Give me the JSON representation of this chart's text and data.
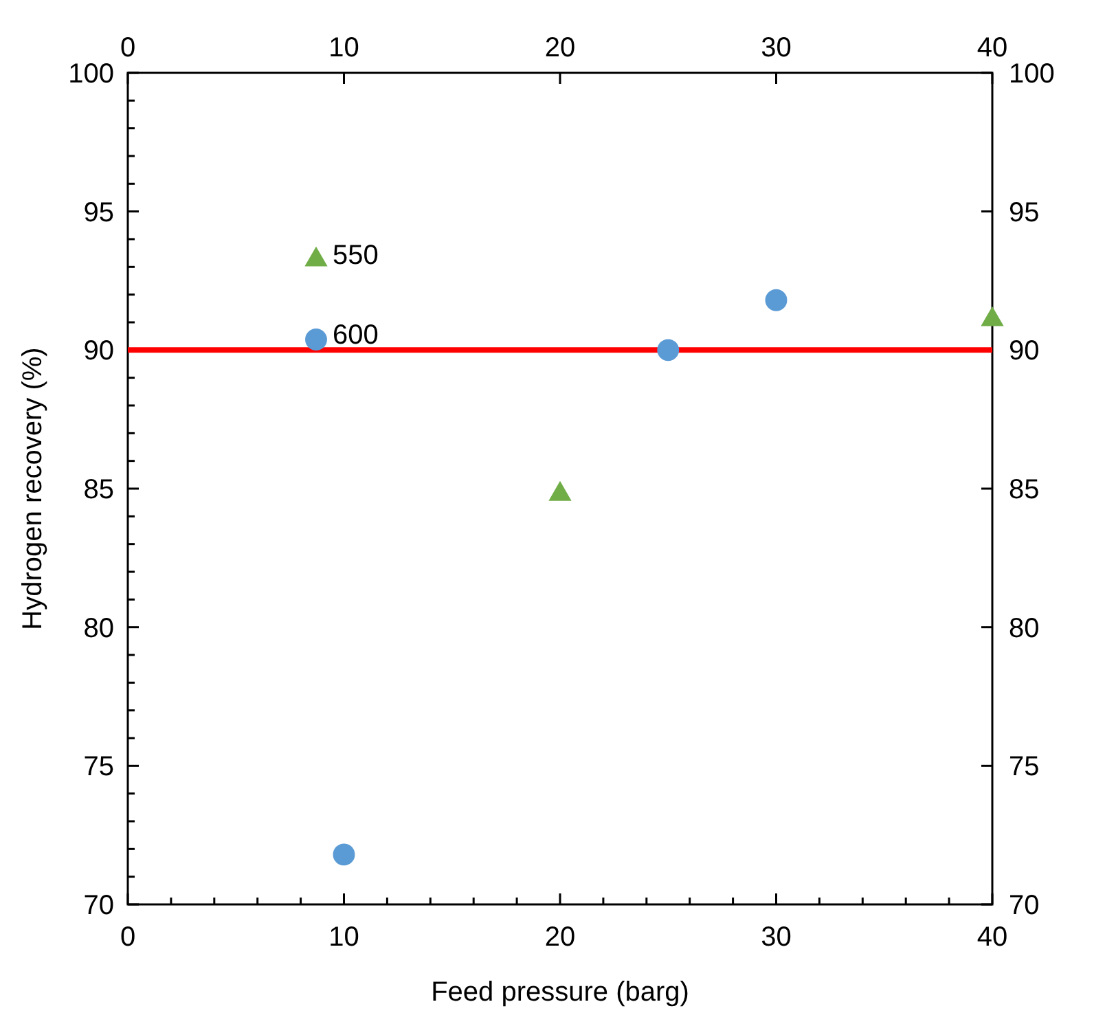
{
  "chart_data": {
    "type": "scatter",
    "xlabel": "Feed pressure (barg)",
    "ylabel": "Hydrogen recovery (%)",
    "series": [
      {
        "name": "550",
        "marker": "triangle",
        "color": "#70ad47",
        "x": [
          20,
          40
        ],
        "values": [
          84.8,
          91.1
        ]
      },
      {
        "name": "600",
        "marker": "circle",
        "color": "#5b9bd5",
        "x": [
          10,
          25,
          30
        ],
        "values": [
          71.8,
          90.0,
          91.8
        ]
      }
    ],
    "xlim": [
      0,
      40
    ],
    "ylim": [
      70,
      100
    ],
    "xticks": [
      0,
      {
        "value": 2,
        "label": null
      },
      {
        "value": 4,
        "label": null
      },
      {
        "value": 6,
        "label": null
      },
      {
        "value": 8,
        "label": null
      },
      10,
      {
        "value": 12,
        "label": null
      },
      {
        "value": 14,
        "label": null
      },
      {
        "value": 16,
        "label": null
      },
      {
        "value": 18,
        "label": null
      },
      20,
      {
        "value": 22,
        "label": null
      },
      {
        "value": 24,
        "label": null
      },
      {
        "value": 26,
        "label": null
      },
      {
        "value": 28,
        "label": null
      },
      30,
      {
        "value": 32,
        "label": null
      },
      {
        "value": 34,
        "label": null
      },
      {
        "value": 36,
        "label": null
      },
      {
        "value": 38,
        "label": null
      },
      40
    ],
    "yticks": [
      70,
      {
        "value": 71,
        "label": null
      },
      {
        "value": 72,
        "label": null
      },
      {
        "value": 73,
        "label": null
      },
      {
        "value": 74,
        "label": null
      },
      75,
      {
        "value": 76,
        "label": null
      },
      {
        "value": 77,
        "label": null
      },
      {
        "value": 78,
        "label": null
      },
      {
        "value": 79,
        "label": null
      },
      80,
      {
        "value": 81,
        "label": null
      },
      {
        "value": 82,
        "label": null
      },
      {
        "value": 83,
        "label": null
      },
      {
        "value": 84,
        "label": null
      },
      85,
      {
        "value": 86,
        "label": null
      },
      {
        "value": 87,
        "label": null
      },
      {
        "value": 88,
        "label": null
      },
      {
        "value": 89,
        "label": null
      },
      90,
      {
        "value": 91,
        "label": null
      },
      {
        "value": 92,
        "label": null
      },
      {
        "value": 93,
        "label": null
      },
      {
        "value": 94,
        "label": null
      },
      95,
      {
        "value": 96,
        "label": null
      },
      {
        "value": 97,
        "label": null
      },
      {
        "value": 98,
        "label": null
      },
      {
        "value": 99,
        "label": null
      },
      100
    ],
    "x2lim": [
      0,
      40
    ],
    "x2ticks": [
      0,
      10,
      20,
      30,
      40
    ],
    "y2lim": [
      70,
      100
    ],
    "y2ticks": [
      70,
      75,
      80,
      85,
      90,
      95,
      100
    ],
    "ref_lines": [
      {
        "axis": "y",
        "value": 90,
        "color": "#ff0000",
        "line_style": "solid"
      }
    ],
    "legend": "top left",
    "grid": false
  }
}
